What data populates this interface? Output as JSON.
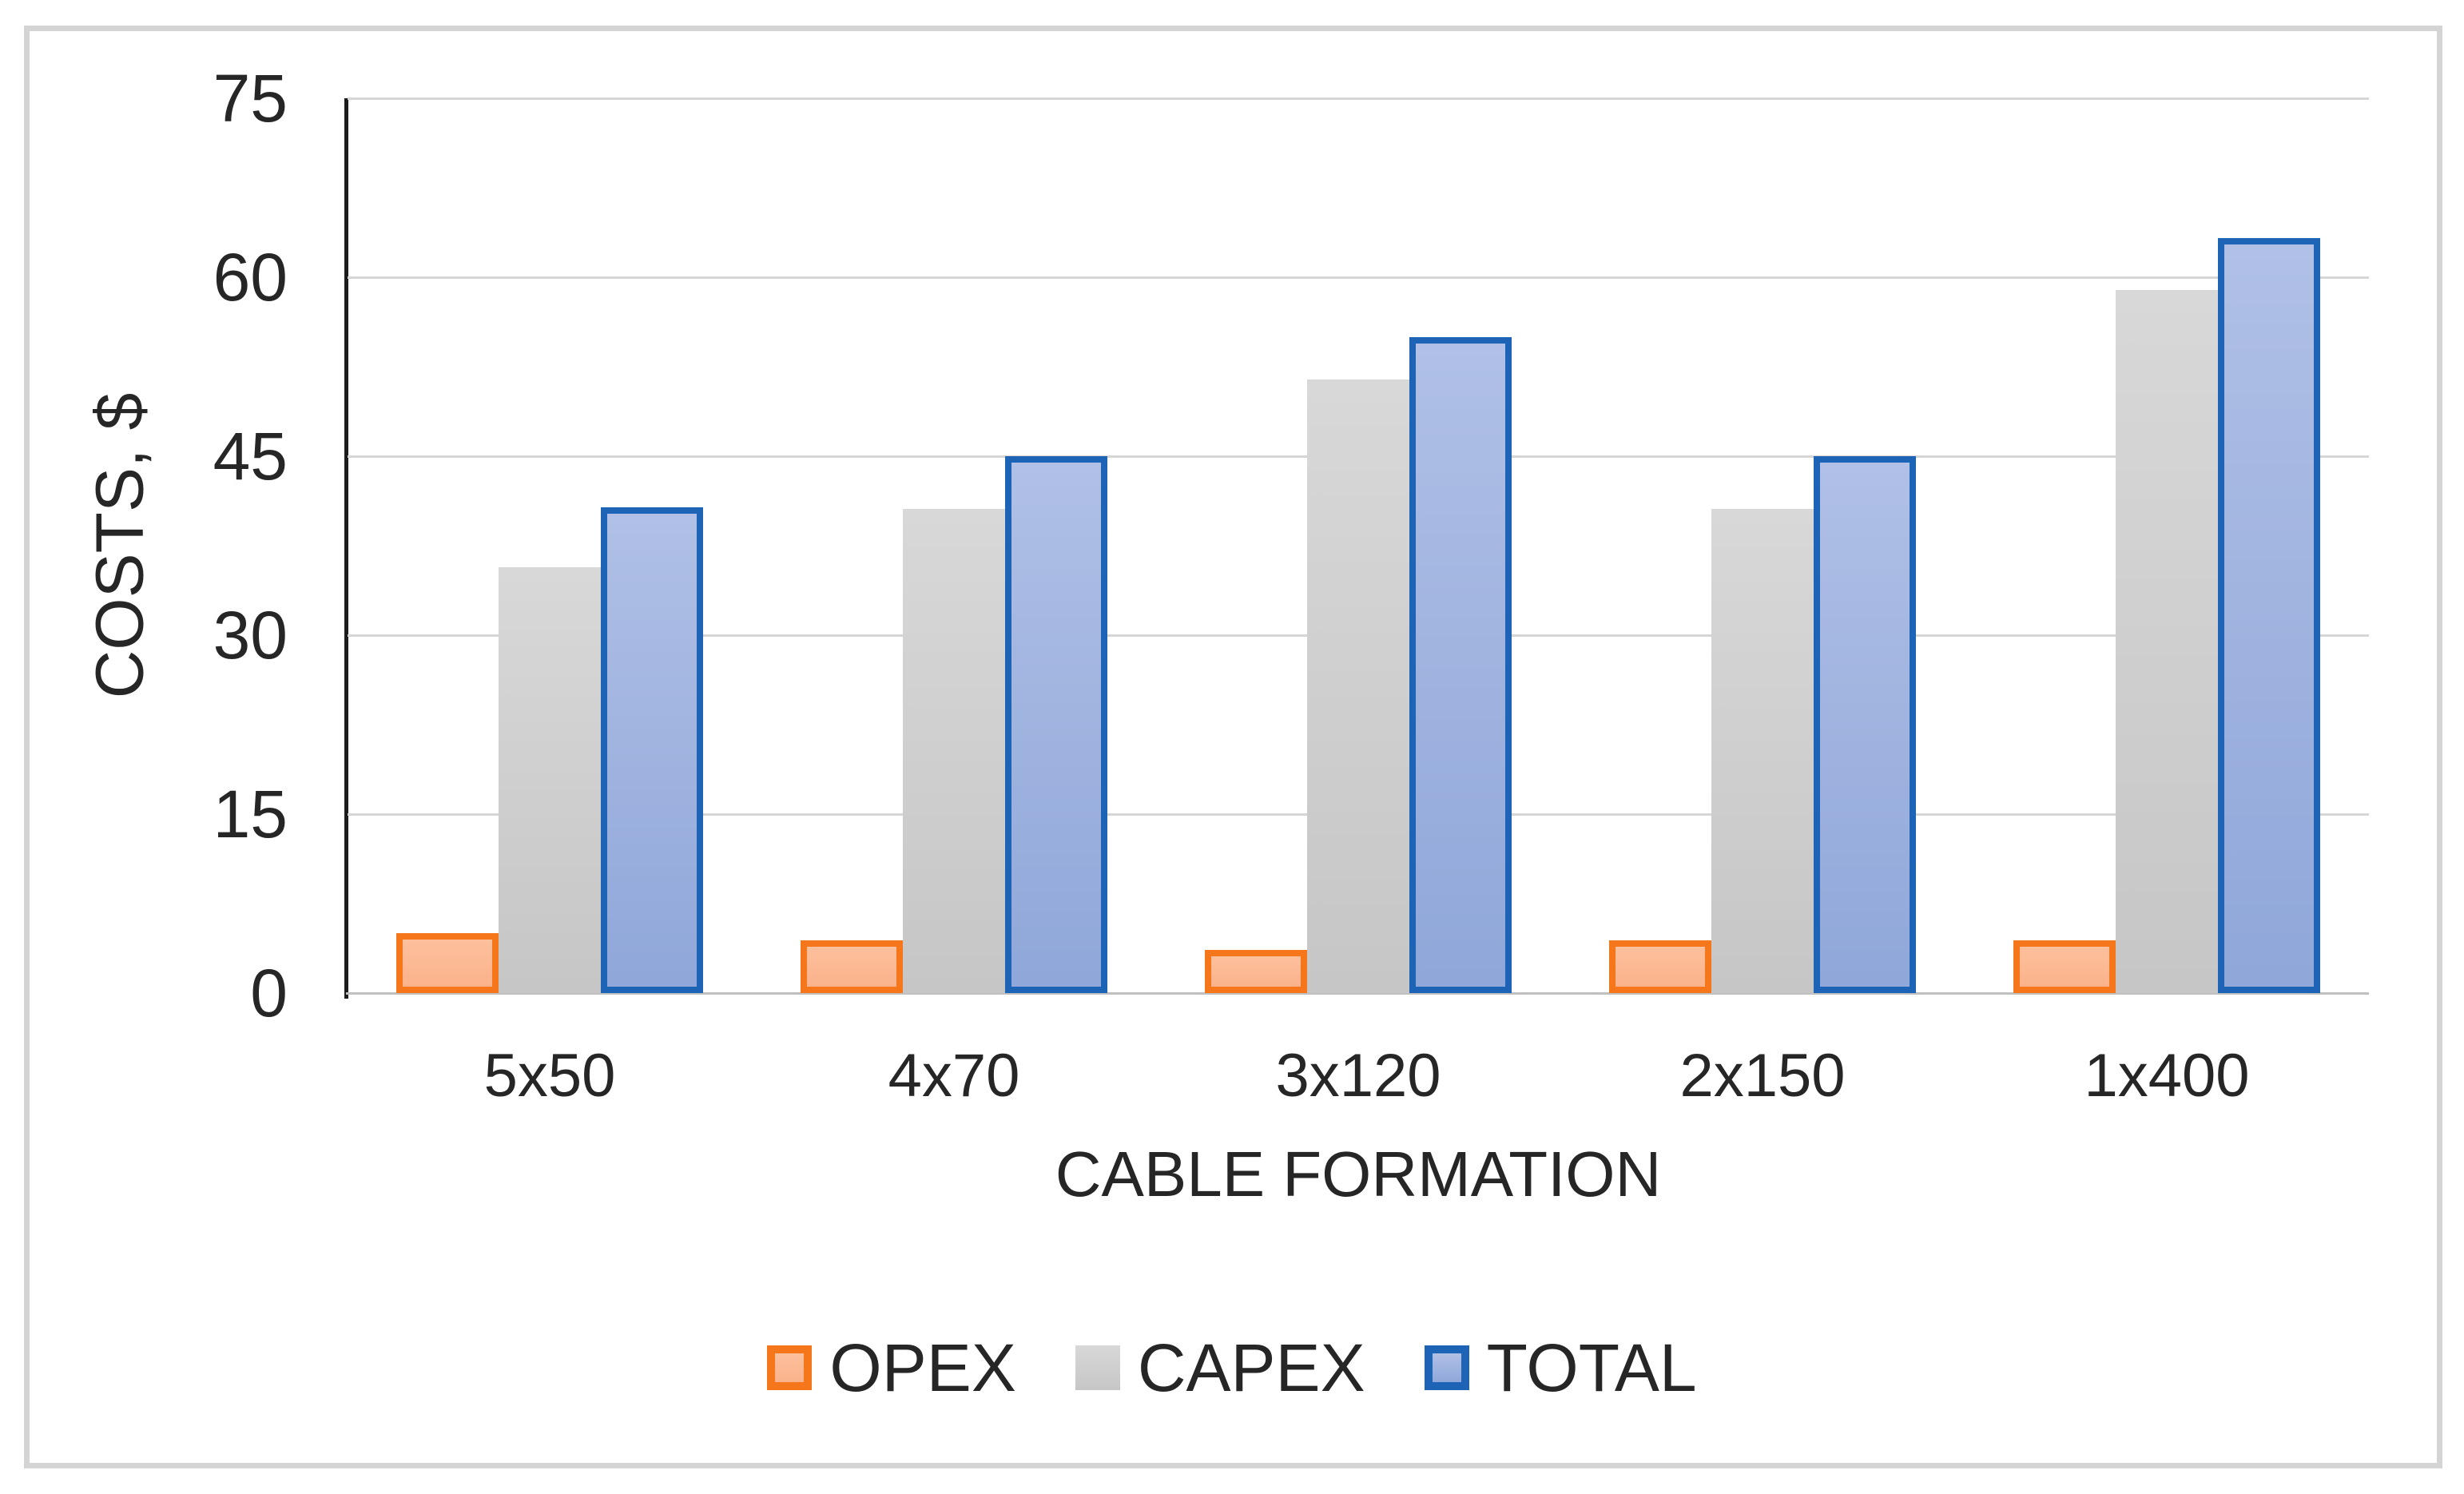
{
  "figure": {
    "background": "#FFFFFF",
    "frame_border_color": "#D4D4D4"
  },
  "chart_data": {
    "type": "bar",
    "title": "",
    "xlabel": "CABLE FORMATION",
    "ylabel": "COSTS, $",
    "categories": [
      "5x50",
      "4x70",
      "3x120",
      "2x150",
      "1x400"
    ],
    "series": [
      {
        "name": "OPEX",
        "values": [
          5.0,
          4.4,
          3.6,
          4.4,
          4.4
        ],
        "fill": "#FBB28A",
        "fill_top": "#FCC09C",
        "border": "#F5761B"
      },
      {
        "name": "CAPEX",
        "values": [
          35.7,
          40.6,
          51.4,
          40.6,
          58.9
        ],
        "fill": "#C6C6C6",
        "fill_top": "#D8D8D8",
        "border": null
      },
      {
        "name": "TOTAL",
        "values": [
          40.7,
          45.0,
          55.0,
          45.0,
          63.3
        ],
        "fill": "#8FA7D9",
        "fill_top": "#B0C0E6",
        "border": "#1E64B6"
      }
    ],
    "ylim": [
      0,
      75
    ],
    "yticks": [
      0,
      15,
      30,
      45,
      60,
      75
    ],
    "grid": "horizontal",
    "gridline_color": "#D6D6D6",
    "axis_line_color": "#1C1C1C",
    "baseline_color": "#C0C0C0",
    "text_color": "#262626",
    "legend_position": "bottom"
  }
}
